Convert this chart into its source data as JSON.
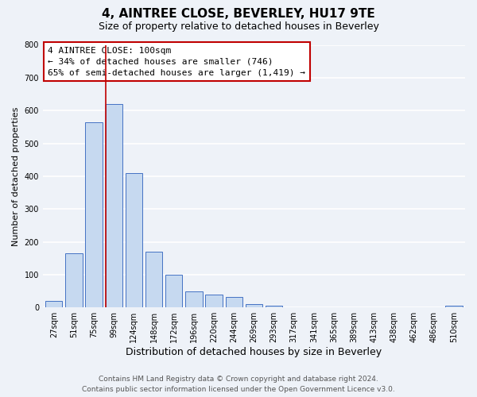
{
  "title": "4, AINTREE CLOSE, BEVERLEY, HU17 9TE",
  "subtitle": "Size of property relative to detached houses in Beverley",
  "xlabel": "Distribution of detached houses by size in Beverley",
  "ylabel": "Number of detached properties",
  "bar_labels": [
    "27sqm",
    "51sqm",
    "75sqm",
    "99sqm",
    "124sqm",
    "148sqm",
    "172sqm",
    "196sqm",
    "220sqm",
    "244sqm",
    "269sqm",
    "293sqm",
    "317sqm",
    "341sqm",
    "365sqm",
    "389sqm",
    "413sqm",
    "438sqm",
    "462sqm",
    "486sqm",
    "510sqm"
  ],
  "bar_heights": [
    20,
    165,
    565,
    620,
    410,
    170,
    100,
    50,
    40,
    33,
    10,
    5,
    0,
    0,
    0,
    0,
    0,
    0,
    0,
    0,
    5
  ],
  "bar_color": "#c6d9f0",
  "bar_edge_color": "#4472c4",
  "red_line_index": 3,
  "annotation_title": "4 AINTREE CLOSE: 100sqm",
  "annotation_line1": "← 34% of detached houses are smaller (746)",
  "annotation_line2": "65% of semi-detached houses are larger (1,419) →",
  "annotation_box_color": "#ffffff",
  "annotation_box_edge": "#c00000",
  "ylim": [
    0,
    800
  ],
  "yticks": [
    0,
    100,
    200,
    300,
    400,
    500,
    600,
    700,
    800
  ],
  "footer_line1": "Contains HM Land Registry data © Crown copyright and database right 2024.",
  "footer_line2": "Contains public sector information licensed under the Open Government Licence v3.0.",
  "background_color": "#eef2f8",
  "grid_color": "#ffffff",
  "title_fontsize": 11,
  "subtitle_fontsize": 9,
  "xlabel_fontsize": 9,
  "ylabel_fontsize": 8,
  "tick_fontsize": 7,
  "annotation_fontsize": 8,
  "footer_fontsize": 6.5
}
